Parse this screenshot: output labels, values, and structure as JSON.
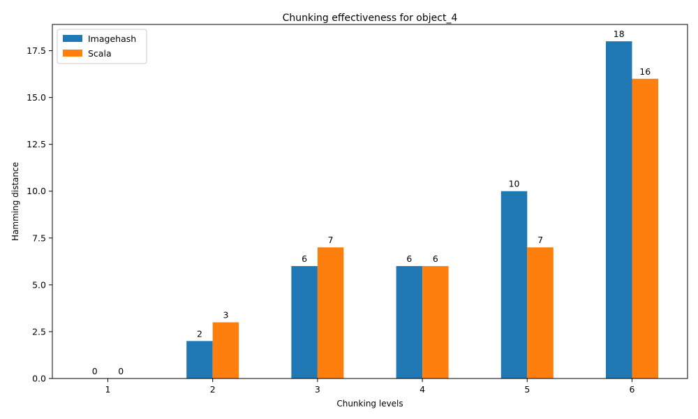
{
  "chart_data": {
    "type": "bar",
    "title": "Chunking effectiveness for object_4",
    "xlabel": "Chunking levels",
    "ylabel": "Hamming distance",
    "categories": [
      "1",
      "2",
      "3",
      "4",
      "5",
      "6"
    ],
    "series": [
      {
        "name": "Imagehash",
        "values": [
          0,
          2,
          6,
          6,
          10,
          18
        ],
        "color": "#1f77b4"
      },
      {
        "name": "Scala",
        "values": [
          0,
          3,
          7,
          6,
          7,
          16
        ],
        "color": "#ff7f0e"
      }
    ],
    "ylim": [
      0,
      18.9
    ],
    "yticks": [
      0.0,
      2.5,
      5.0,
      7.5,
      10.0,
      12.5,
      15.0,
      17.5
    ],
    "ytick_labels": [
      "0.0",
      "2.5",
      "5.0",
      "7.5",
      "10.0",
      "12.5",
      "15.0",
      "17.5"
    ],
    "grid": false,
    "legend_position": "top-left"
  }
}
